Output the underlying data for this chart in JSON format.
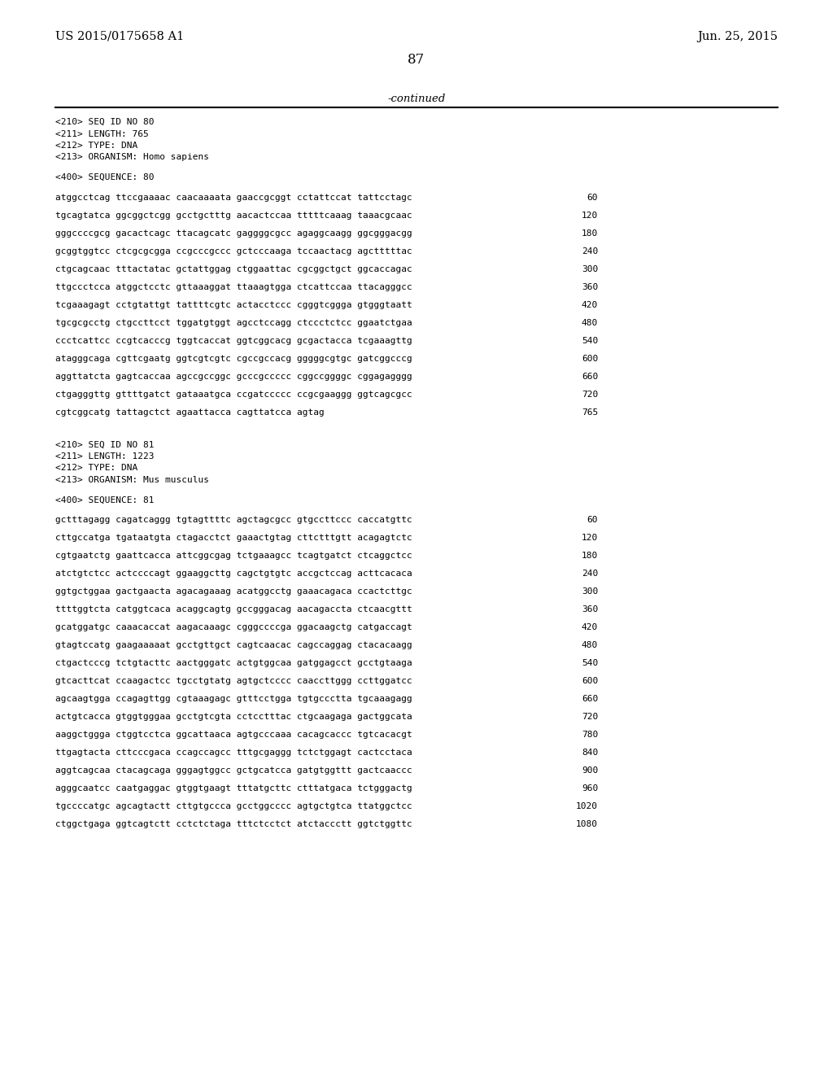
{
  "header_left": "US 2015/0175658 A1",
  "header_right": "Jun. 25, 2015",
  "page_number": "87",
  "continued_label": "-continued",
  "background_color": "#ffffff",
  "text_color": "#000000",
  "seq80_header": [
    "<210> SEQ ID NO 80",
    "<211> LENGTH: 765",
    "<212> TYPE: DNA",
    "<213> ORGANISM: Homo sapiens"
  ],
  "seq80_label": "<400> SEQUENCE: 80",
  "seq80_lines": [
    [
      "atggcctcag ttccgaaaac caacaaaata gaaccgcggt cctattccat tattcctagc",
      "60"
    ],
    [
      "tgcagtatca ggcggctcgg gcctgctttg aacactccaa tttttcaaag taaacgcaac",
      "120"
    ],
    [
      "gggccccgcg gacactcagc ttacagcatc gaggggcgcc agaggcaagg ggcgggacgg",
      "180"
    ],
    [
      "gcggtggtcc ctcgcgcgga ccgcccgccc gctcccaaga tccaactacg agctttttac",
      "240"
    ],
    [
      "ctgcagcaac tttactatac gctattggag ctggaattac cgcggctgct ggcaccagac",
      "300"
    ],
    [
      "ttgccctcca atggctcctc gttaaaggat ttaaagtgga ctcattccaa ttacagggcc",
      "360"
    ],
    [
      "tcgaaagagt cctgtattgt tattttcgtc actacctccc cgggtcggga gtgggtaatt",
      "420"
    ],
    [
      "tgcgcgcctg ctgccttcct tggatgtggt agcctccagg ctccctctcc ggaatctgaa",
      "480"
    ],
    [
      "ccctcattcc ccgtcacccg tggtcaccat ggtcggcacg gcgactacca tcgaaagttg",
      "540"
    ],
    [
      "atagggcaga cgttcgaatg ggtcgtcgtc cgccgccacg gggggcgtgc gatcggcccg",
      "600"
    ],
    [
      "aggttatcta gagtcaccaa agccgccggc gcccgccccc cggccggggc cggagagggg",
      "660"
    ],
    [
      "ctgagggttg gttttgatct gataaatgca ccgatccccc ccgcgaaggg ggtcagcgcc",
      "720"
    ],
    [
      "cgtcggcatg tattagctct agaattacca cagttatcca agtag",
      "765"
    ]
  ],
  "seq81_header": [
    "<210> SEQ ID NO 81",
    "<211> LENGTH: 1223",
    "<212> TYPE: DNA",
    "<213> ORGANISM: Mus musculus"
  ],
  "seq81_label": "<400> SEQUENCE: 81",
  "seq81_lines": [
    [
      "gctttagagg cagatcaggg tgtagttttc agctagcgcc gtgccttccc caccatgttc",
      "60"
    ],
    [
      "cttgccatga tgataatgta ctagacctct gaaactgtag cttctttgtt acagagtctc",
      "120"
    ],
    [
      "cgtgaatctg gaattcacca attcggcgag tctgaaagcc tcagtgatct ctcaggctcc",
      "180"
    ],
    [
      "atctgtctcc actccccagt ggaaggcttg cagctgtgtc accgctccag acttcacaca",
      "240"
    ],
    [
      "ggtgctggaa gactgaacta agacagaaag acatggcctg gaaacagaca ccactcttgc",
      "300"
    ],
    [
      "ttttggtcta catggtcaca acaggcagtg gccgggacag aacagaccta ctcaacgttt",
      "360"
    ],
    [
      "gcatggatgc caaacaccat aagacaaagc cgggccccga ggacaagctg catgaccagt",
      "420"
    ],
    [
      "gtagtccatg gaagaaaaat gcctgttgct cagtcaacac cagccaggag ctacacaagg",
      "480"
    ],
    [
      "ctgactcccg tctgtacttc aactgggatc actgtggcaa gatggagcct gcctgtaaga",
      "540"
    ],
    [
      "gtcacttcat ccaagactcc tgcctgtatg agtgctcccc caaccttggg ccttggatcc",
      "600"
    ],
    [
      "agcaagtgga ccagagttgg cgtaaagagc gtttcctgga tgtgccctta tgcaaagagg",
      "660"
    ],
    [
      "actgtcacca gtggtgggaa gcctgtcgta cctcctttac ctgcaagaga gactggcata",
      "720"
    ],
    [
      "aaggctggga ctggtcctca ggcattaaca agtgcccaaa cacagcaccc tgtcacacgt",
      "780"
    ],
    [
      "ttgagtacta cttcccgaca ccagccagcc tttgcgaggg tctctggagt cactcctaca",
      "840"
    ],
    [
      "aggtcagcaa ctacagcaga gggagtggcc gctgcatcca gatgtggttt gactcaaccc",
      "900"
    ],
    [
      "agggcaatcc caatgaggac gtggtgaagt tttatgcttc ctttatgaca tctgggactg",
      "960"
    ],
    [
      "tgccccatgc agcagtactt cttgtgccca gcctggcccc agtgctgtca ttatggctcc",
      "1020"
    ],
    [
      "ctggctgaga ggtcagtctt cctctctaga tttctcctct atctaccctt ggtctggttc",
      "1080"
    ]
  ]
}
